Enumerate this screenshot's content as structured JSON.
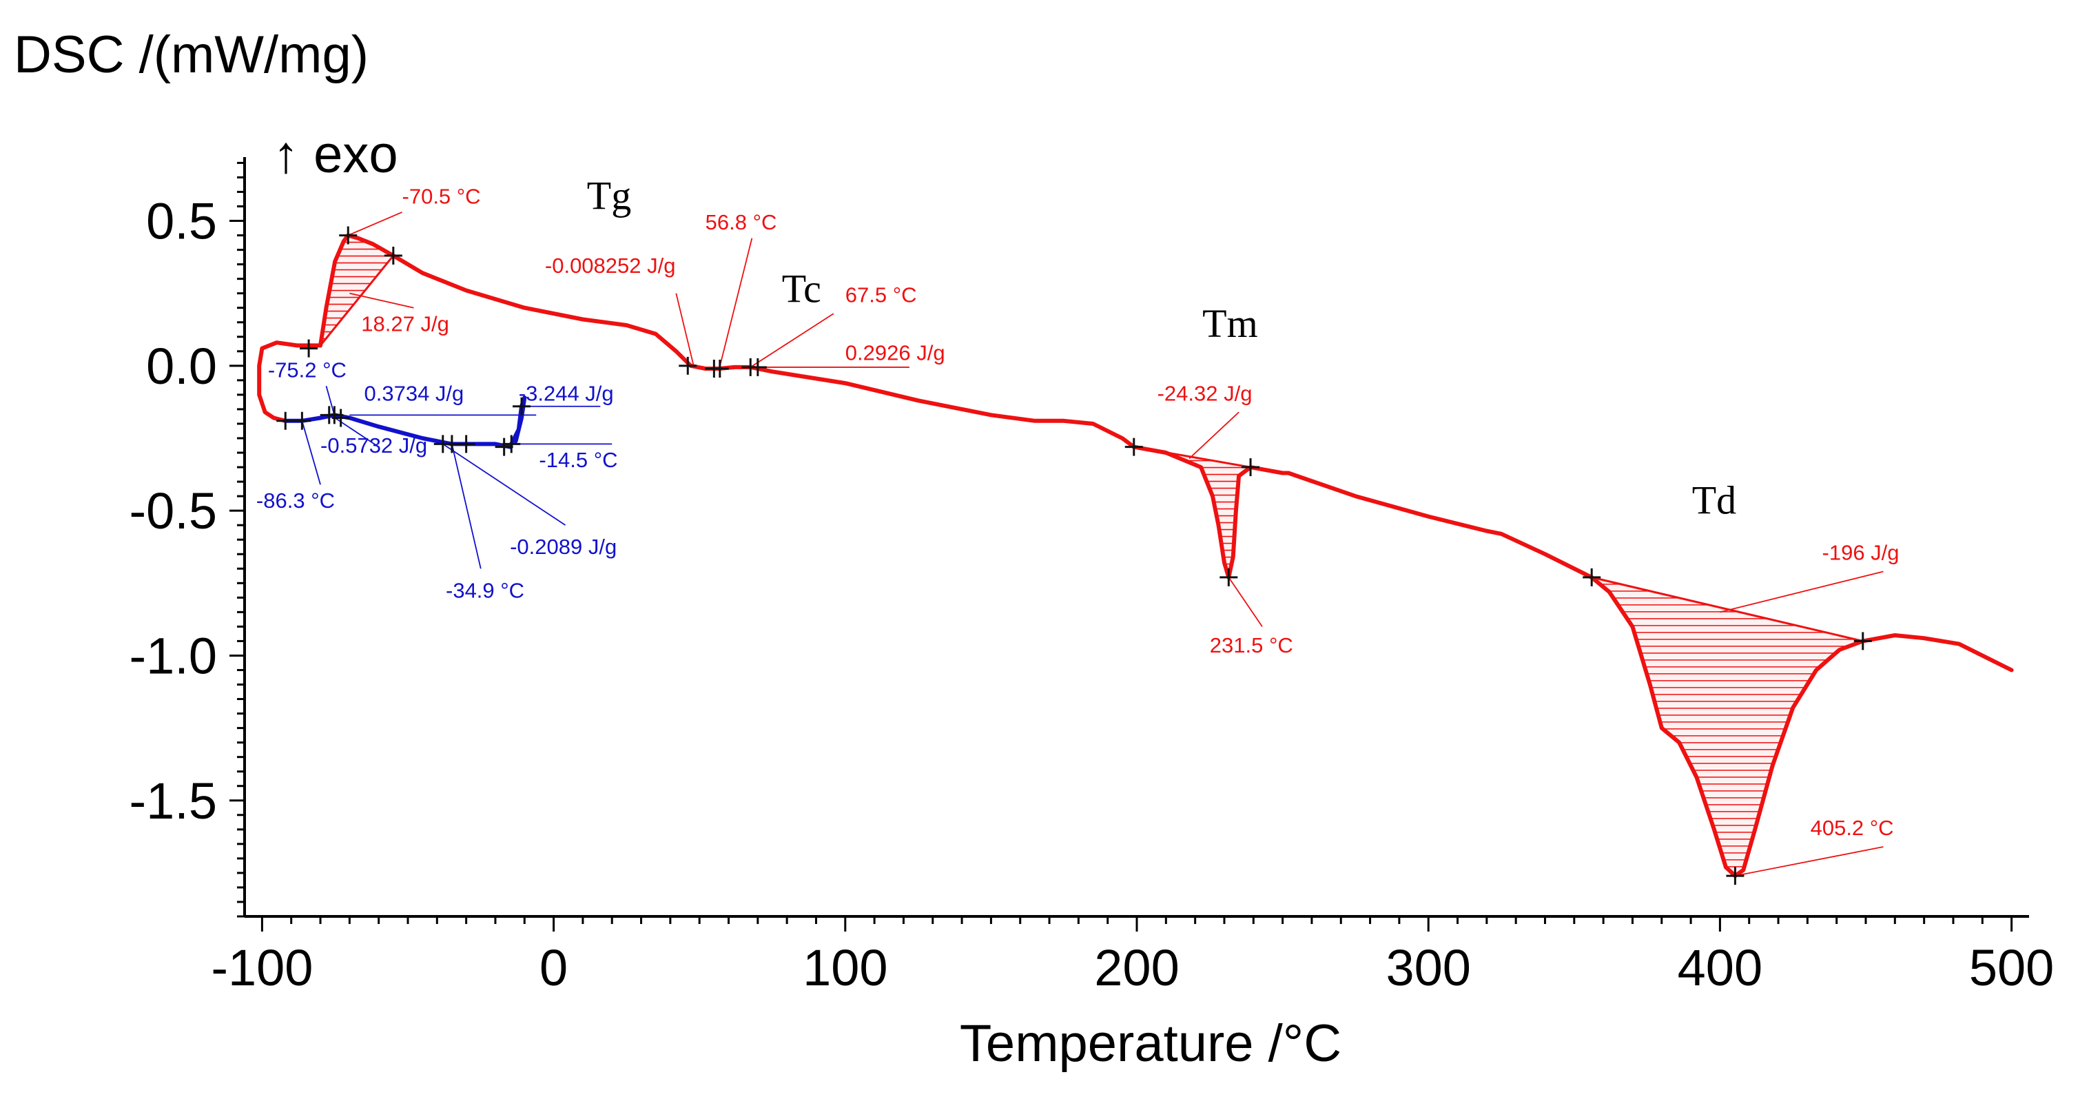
{
  "chart_data": {
    "type": "line",
    "ylabel": "DSC /(mW/mg)",
    "exo_label": "↑ exo",
    "xlabel": "Temperature /°C",
    "xlim": [
      -106,
      506
    ],
    "ylim": [
      -1.9,
      0.72
    ],
    "x_ticks": [
      -100,
      0,
      100,
      200,
      300,
      400,
      500
    ],
    "x_tick_labels": [
      "-100",
      "0",
      "100",
      "200",
      "300",
      "400",
      "500"
    ],
    "y_ticks": [
      0.5,
      0.0,
      -0.5,
      -1.0,
      -1.5
    ],
    "y_tick_labels": [
      "0.5",
      "0.0",
      "-0.5",
      "-1.0",
      "-1.5"
    ],
    "colors": {
      "heating": "#ee1111",
      "cooling": "#1111cc",
      "axis": "#000000"
    },
    "series": [
      {
        "color_key": "heating",
        "points": [
          [
            -80,
            0.07
          ],
          [
            -78,
            0.2
          ],
          [
            -75,
            0.36
          ],
          [
            -72,
            0.43
          ],
          [
            -70.5,
            0.45
          ],
          [
            -67,
            0.44
          ],
          [
            -62,
            0.42
          ],
          [
            -55,
            0.38
          ],
          [
            -45,
            0.32
          ],
          [
            -30,
            0.26
          ],
          [
            -10,
            0.2
          ],
          [
            10,
            0.16
          ],
          [
            25,
            0.14
          ],
          [
            35,
            0.11
          ],
          [
            42,
            0.05
          ],
          [
            47,
            0.0
          ],
          [
            52,
            -0.01
          ],
          [
            56.8,
            -0.01
          ],
          [
            62,
            -0.005
          ],
          [
            67.5,
            -0.005
          ],
          [
            75,
            -0.02
          ],
          [
            100,
            -0.06
          ],
          [
            125,
            -0.12
          ],
          [
            150,
            -0.17
          ],
          [
            165,
            -0.19
          ],
          [
            175,
            -0.19
          ],
          [
            185,
            -0.2
          ],
          [
            195,
            -0.25
          ],
          [
            199,
            -0.28
          ],
          [
            210,
            -0.3
          ],
          [
            222,
            -0.35
          ],
          [
            226,
            -0.45
          ],
          [
            228,
            -0.55
          ],
          [
            230,
            -0.68
          ],
          [
            231.5,
            -0.73
          ],
          [
            233,
            -0.66
          ],
          [
            234,
            -0.5
          ],
          [
            235,
            -0.38
          ],
          [
            239,
            -0.35
          ],
          [
            250,
            -0.37
          ],
          [
            252,
            -0.37
          ],
          [
            275,
            -0.45
          ],
          [
            300,
            -0.52
          ],
          [
            320,
            -0.57
          ],
          [
            325,
            -0.58
          ],
          [
            340,
            -0.65
          ],
          [
            356,
            -0.73
          ],
          [
            362,
            -0.78
          ],
          [
            370,
            -0.9
          ],
          [
            376,
            -1.1
          ],
          [
            380,
            -1.25
          ],
          [
            386,
            -1.3
          ],
          [
            392,
            -1.42
          ],
          [
            398,
            -1.6
          ],
          [
            402,
            -1.73
          ],
          [
            405.2,
            -1.76
          ],
          [
            408,
            -1.74
          ],
          [
            412,
            -1.6
          ],
          [
            418,
            -1.38
          ],
          [
            425,
            -1.18
          ],
          [
            433,
            -1.05
          ],
          [
            441,
            -0.98
          ],
          [
            449,
            -0.95
          ],
          [
            460,
            -0.93
          ],
          [
            470,
            -0.94
          ],
          [
            482,
            -0.96
          ],
          [
            492,
            -1.01
          ],
          [
            500,
            -1.05
          ]
        ]
      },
      {
        "color_key": "heating",
        "points": [
          [
            -80,
            0.07
          ],
          [
            -88,
            0.07
          ],
          [
            -95,
            0.08
          ],
          [
            -100,
            0.06
          ],
          [
            -101,
            0.0
          ],
          [
            -101,
            -0.1
          ],
          [
            -99,
            -0.16
          ],
          [
            -96,
            -0.18
          ],
          [
            -92,
            -0.19
          ]
        ]
      },
      {
        "color_key": "cooling",
        "points": [
          [
            -92,
            -0.19
          ],
          [
            -86.3,
            -0.19
          ],
          [
            -80,
            -0.18
          ],
          [
            -75.2,
            -0.17
          ],
          [
            -70,
            -0.18
          ],
          [
            -60,
            -0.21
          ],
          [
            -45,
            -0.25
          ],
          [
            -34.9,
            -0.27
          ],
          [
            -30,
            -0.27
          ],
          [
            -20,
            -0.27
          ],
          [
            -15,
            -0.28
          ],
          [
            -14.5,
            -0.27
          ],
          [
            -12,
            -0.22
          ],
          [
            -11,
            -0.14
          ],
          [
            -10,
            -0.11
          ],
          [
            -11,
            -0.18
          ],
          [
            -13,
            -0.26
          ]
        ]
      }
    ],
    "area_fills": [
      {
        "color_key": "heating",
        "region": [
          [
            -80,
            0.07
          ],
          [
            -78,
            0.2
          ],
          [
            -75,
            0.36
          ],
          [
            -72,
            0.43
          ],
          [
            -70.5,
            0.45
          ],
          [
            -67,
            0.44
          ],
          [
            -62,
            0.42
          ],
          [
            -55,
            0.38
          ]
        ]
      },
      {
        "color_key": "heating",
        "region": [
          [
            199,
            -0.28
          ],
          [
            210,
            -0.3
          ],
          [
            222,
            -0.35
          ],
          [
            226,
            -0.45
          ],
          [
            228,
            -0.55
          ],
          [
            230,
            -0.68
          ],
          [
            231.5,
            -0.73
          ],
          [
            233,
            -0.66
          ],
          [
            234,
            -0.5
          ],
          [
            235,
            -0.38
          ],
          [
            239,
            -0.35
          ]
        ]
      },
      {
        "color_key": "heating",
        "region": [
          [
            356,
            -0.73
          ],
          [
            362,
            -0.78
          ],
          [
            370,
            -0.9
          ],
          [
            376,
            -1.1
          ],
          [
            380,
            -1.25
          ],
          [
            386,
            -1.3
          ],
          [
            392,
            -1.42
          ],
          [
            398,
            -1.6
          ],
          [
            402,
            -1.73
          ],
          [
            405.2,
            -1.76
          ],
          [
            408,
            -1.74
          ],
          [
            412,
            -1.6
          ],
          [
            418,
            -1.38
          ],
          [
            425,
            -1.18
          ],
          [
            433,
            -1.05
          ],
          [
            441,
            -0.98
          ],
          [
            449,
            -0.95
          ]
        ]
      }
    ],
    "markers": [
      {
        "color_key": "heating",
        "x": -70.5,
        "y": 0.45
      },
      {
        "color_key": "heating",
        "x": -55,
        "y": 0.38
      },
      {
        "color_key": "heating",
        "x": -84,
        "y": 0.06
      },
      {
        "color_key": "heating",
        "x": 46,
        "y": 0.0
      },
      {
        "color_key": "heating",
        "x": 55,
        "y": -0.01
      },
      {
        "color_key": "heating",
        "x": 57,
        "y": -0.01
      },
      {
        "color_key": "heating",
        "x": 67.5,
        "y": -0.005
      },
      {
        "color_key": "heating",
        "x": 70,
        "y": -0.005
      },
      {
        "color_key": "heating",
        "x": 199,
        "y": -0.28
      },
      {
        "color_key": "heating",
        "x": 231.5,
        "y": -0.73
      },
      {
        "color_key": "heating",
        "x": 239,
        "y": -0.35
      },
      {
        "color_key": "heating",
        "x": 356,
        "y": -0.73
      },
      {
        "color_key": "heating",
        "x": 405.2,
        "y": -1.76
      },
      {
        "color_key": "heating",
        "x": 449,
        "y": -0.95
      },
      {
        "color_key": "cooling",
        "x": -92,
        "y": -0.19
      },
      {
        "color_key": "cooling",
        "x": -86.3,
        "y": -0.19
      },
      {
        "color_key": "cooling",
        "x": -77,
        "y": -0.17
      },
      {
        "color_key": "cooling",
        "x": -75.2,
        "y": -0.17
      },
      {
        "color_key": "cooling",
        "x": -73,
        "y": -0.18
      },
      {
        "color_key": "cooling",
        "x": -38,
        "y": -0.27
      },
      {
        "color_key": "cooling",
        "x": -34.9,
        "y": -0.27
      },
      {
        "color_key": "cooling",
        "x": -30,
        "y": -0.27
      },
      {
        "color_key": "cooling",
        "x": -17,
        "y": -0.28
      },
      {
        "color_key": "cooling",
        "x": -14.5,
        "y": -0.27
      },
      {
        "color_key": "cooling",
        "x": -11,
        "y": -0.14
      }
    ],
    "annotations": [
      {
        "text": "-70.5 °C",
        "color_key": "heating",
        "x": -52,
        "y": 0.56,
        "anchor": "start",
        "leader": [
          [
            -70.5,
            0.45
          ],
          [
            -52,
            0.53
          ]
        ]
      },
      {
        "text": "18.27 J/g",
        "color_key": "heating",
        "x": -66,
        "y": 0.12,
        "anchor": "start",
        "leader": [
          [
            -70,
            0.25
          ],
          [
            -48,
            0.2
          ]
        ]
      },
      {
        "text": "-0.008252 J/g",
        "color_key": "heating",
        "x": -3,
        "y": 0.32,
        "anchor": "start",
        "leader": [
          [
            48,
            0.0
          ],
          [
            42,
            0.25
          ]
        ]
      },
      {
        "text": "56.8 °C",
        "color_key": "heating",
        "x": 52,
        "y": 0.47,
        "anchor": "start",
        "leader": [
          [
            56.8,
            -0.01
          ],
          [
            68,
            0.44
          ]
        ]
      },
      {
        "text": "67.5 °C",
        "color_key": "heating",
        "x": 100,
        "y": 0.22,
        "anchor": "start",
        "leader": [
          [
            67.5,
            -0.005
          ],
          [
            96,
            0.18
          ]
        ]
      },
      {
        "text": "0.2926 J/g",
        "color_key": "heating",
        "x": 100,
        "y": 0.02,
        "anchor": "start",
        "leader": [
          [
            70,
            -0.005
          ],
          [
            122,
            -0.005
          ]
        ]
      },
      {
        "text": "-24.32 J/g",
        "color_key": "heating",
        "x": 207,
        "y": -0.12,
        "anchor": "start",
        "leader": [
          [
            218,
            -0.32
          ],
          [
            235,
            -0.16
          ]
        ]
      },
      {
        "text": "231.5 °C",
        "color_key": "heating",
        "x": 225,
        "y": -0.99,
        "anchor": "start",
        "leader": [
          [
            231.5,
            -0.73
          ],
          [
            243,
            -0.9
          ]
        ]
      },
      {
        "text": "405.2 °C",
        "color_key": "heating",
        "x": 431,
        "y": -1.62,
        "anchor": "start",
        "leader": [
          [
            405.2,
            -1.76
          ],
          [
            456,
            -1.66
          ]
        ]
      },
      {
        "text": "-196 J/g",
        "color_key": "heating",
        "x": 435,
        "y": -0.67,
        "anchor": "start",
        "leader": [
          [
            400,
            -0.85
          ],
          [
            456,
            -0.71
          ]
        ]
      },
      {
        "text": "-75.2 °C",
        "color_key": "cooling",
        "x": -98,
        "y": -0.04,
        "anchor": "start",
        "leader": [
          [
            -75.2,
            -0.17
          ],
          [
            -78,
            -0.07
          ]
        ]
      },
      {
        "text": "0.3734 J/g",
        "color_key": "cooling",
        "x": -65,
        "y": -0.12,
        "anchor": "start",
        "leader": [
          [
            -70,
            -0.17
          ],
          [
            -6,
            -0.17
          ]
        ]
      },
      {
        "text": "-3.244 J/g",
        "color_key": "cooling",
        "x": -12,
        "y": -0.12,
        "anchor": "start",
        "leader": [
          [
            -11,
            -0.14
          ],
          [
            16,
            -0.14
          ]
        ]
      },
      {
        "text": "-14.5 °C",
        "color_key": "cooling",
        "x": -5,
        "y": -0.35,
        "anchor": "start",
        "leader": [
          [
            -14.5,
            -0.27
          ],
          [
            20,
            -0.27
          ]
        ]
      },
      {
        "text": "-0.5732 J/g",
        "color_key": "cooling",
        "x": -80,
        "y": -0.3,
        "anchor": "start",
        "leader": [
          [
            -75,
            -0.18
          ],
          [
            -60,
            -0.28
          ]
        ]
      },
      {
        "text": "-86.3 °C",
        "color_key": "cooling",
        "x": -102,
        "y": -0.49,
        "anchor": "start",
        "leader": [
          [
            -86.3,
            -0.19
          ],
          [
            -80,
            -0.41
          ]
        ]
      },
      {
        "text": "-0.2089 J/g",
        "color_key": "cooling",
        "x": -15,
        "y": -0.65,
        "anchor": "start",
        "leader": [
          [
            -38,
            -0.27
          ],
          [
            4,
            -0.55
          ]
        ]
      },
      {
        "text": "-34.9 °C",
        "color_key": "cooling",
        "x": -37,
        "y": -0.8,
        "anchor": "start",
        "leader": [
          [
            -34.9,
            -0.27
          ],
          [
            -25,
            -0.7
          ]
        ]
      }
    ],
    "transition_labels": [
      {
        "text": "Tg",
        "x": 19,
        "y": 0.54
      },
      {
        "text": "Tc",
        "x": 85,
        "y": 0.22
      },
      {
        "text": "Tm",
        "x": 232,
        "y": 0.1
      },
      {
        "text": "Td",
        "x": 398,
        "y": -0.51
      }
    ]
  }
}
